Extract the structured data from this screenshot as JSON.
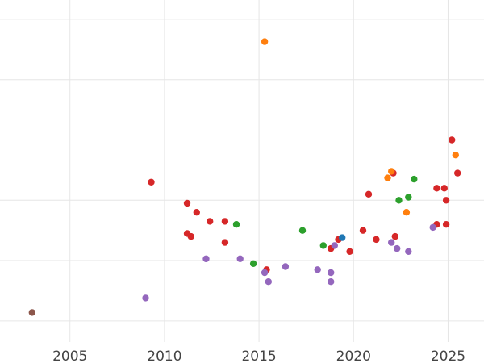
{
  "chart_data": {
    "type": "scatter",
    "title": "",
    "xlabel": "",
    "ylabel": "",
    "xlim": [
      2001.3,
      2026.9
    ],
    "ylim": [
      0.65,
      6.32
    ],
    "x_ticks": [
      2005,
      2010,
      2015,
      2020,
      2025
    ],
    "x_tick_labels": [
      "2005",
      "2010",
      "2015",
      "2020",
      "2025"
    ],
    "y_gridlines": [
      1,
      2,
      3,
      4,
      5,
      6
    ],
    "grid": true,
    "legend": "none",
    "series": [
      {
        "color": "#d62728",
        "points": [
          {
            "x": 2009.3,
            "y": 3.3
          },
          {
            "x": 2011.2,
            "y": 2.95
          },
          {
            "x": 2011.7,
            "y": 2.8
          },
          {
            "x": 2011.2,
            "y": 2.45
          },
          {
            "x": 2011.4,
            "y": 2.4
          },
          {
            "x": 2012.4,
            "y": 2.65
          },
          {
            "x": 2013.2,
            "y": 2.65
          },
          {
            "x": 2013.2,
            "y": 2.3
          },
          {
            "x": 2015.4,
            "y": 1.85
          },
          {
            "x": 2018.8,
            "y": 2.2
          },
          {
            "x": 2019.2,
            "y": 2.35
          },
          {
            "x": 2019.8,
            "y": 2.15
          },
          {
            "x": 2020.5,
            "y": 2.5
          },
          {
            "x": 2020.8,
            "y": 3.1
          },
          {
            "x": 2021.2,
            "y": 2.35
          },
          {
            "x": 2022.1,
            "y": 3.45
          },
          {
            "x": 2022.2,
            "y": 2.4
          },
          {
            "x": 2024.4,
            "y": 2.6
          },
          {
            "x": 2024.4,
            "y": 3.2
          },
          {
            "x": 2024.8,
            "y": 3.2
          },
          {
            "x": 2024.9,
            "y": 2.6
          },
          {
            "x": 2024.9,
            "y": 3.0
          },
          {
            "x": 2025.2,
            "y": 4.0
          },
          {
            "x": 2025.5,
            "y": 3.45
          }
        ]
      },
      {
        "color": "#ff7f0e",
        "points": [
          {
            "x": 2015.3,
            "y": 5.63
          },
          {
            "x": 2021.8,
            "y": 3.37
          },
          {
            "x": 2022.0,
            "y": 3.48
          },
          {
            "x": 2022.8,
            "y": 2.8
          },
          {
            "x": 2025.4,
            "y": 3.75
          }
        ]
      },
      {
        "color": "#2ca02c",
        "points": [
          {
            "x": 2013.8,
            "y": 2.6
          },
          {
            "x": 2014.7,
            "y": 1.95
          },
          {
            "x": 2017.3,
            "y": 2.5
          },
          {
            "x": 2018.4,
            "y": 2.25
          },
          {
            "x": 2022.4,
            "y": 3.0
          },
          {
            "x": 2022.9,
            "y": 3.05
          },
          {
            "x": 2023.2,
            "y": 3.35
          }
        ]
      },
      {
        "color": "#9467bd",
        "points": [
          {
            "x": 2009.0,
            "y": 1.38
          },
          {
            "x": 2012.2,
            "y": 2.03
          },
          {
            "x": 2014.0,
            "y": 2.03
          },
          {
            "x": 2015.3,
            "y": 1.8
          },
          {
            "x": 2015.5,
            "y": 1.65
          },
          {
            "x": 2016.4,
            "y": 1.9
          },
          {
            "x": 2018.1,
            "y": 1.85
          },
          {
            "x": 2018.8,
            "y": 1.65
          },
          {
            "x": 2018.8,
            "y": 1.8
          },
          {
            "x": 2019.0,
            "y": 2.25
          },
          {
            "x": 2022.0,
            "y": 2.3
          },
          {
            "x": 2022.3,
            "y": 2.2
          },
          {
            "x": 2022.9,
            "y": 2.15
          },
          {
            "x": 2024.2,
            "y": 2.55
          }
        ]
      },
      {
        "color": "#1f77b4",
        "points": [
          {
            "x": 2019.4,
            "y": 2.38
          }
        ]
      },
      {
        "color": "#8c564b",
        "points": [
          {
            "x": 2003.0,
            "y": 1.14
          }
        ]
      }
    ]
  }
}
